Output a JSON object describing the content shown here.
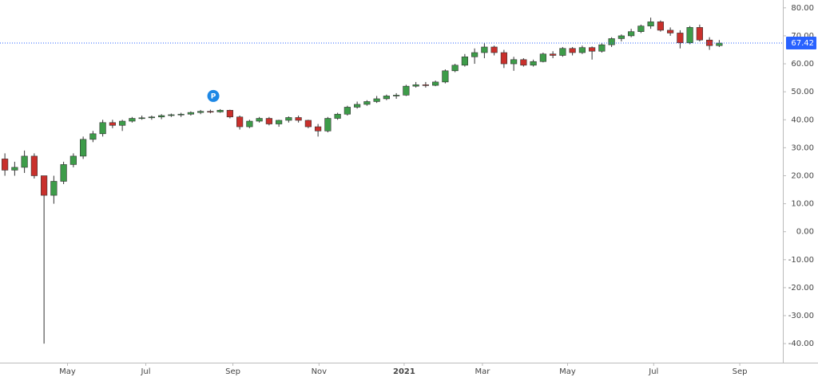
{
  "chart_data": {
    "type": "candlestick",
    "x": [
      0,
      1,
      2,
      3,
      4,
      5,
      6,
      7,
      8,
      9,
      10,
      11,
      12,
      13,
      14,
      15,
      16,
      17,
      18,
      19,
      20,
      21,
      22,
      23,
      24,
      25,
      26,
      27,
      28,
      29,
      30,
      31,
      32,
      33,
      34,
      35,
      36,
      37,
      38,
      39,
      40,
      41,
      42,
      43,
      44,
      45,
      46,
      47,
      48,
      49,
      50,
      51,
      52,
      53,
      54,
      55,
      56,
      57,
      58,
      59,
      60,
      61,
      62,
      63,
      64,
      65,
      66,
      67,
      68,
      69,
      70,
      71,
      72,
      73
    ],
    "open": [
      26,
      22,
      23,
      27,
      20,
      13,
      18,
      24,
      27,
      33,
      35,
      39,
      38,
      39.5,
      40.5,
      40.7,
      41,
      41.5,
      41.8,
      42,
      42.6,
      43,
      42.8,
      43.4,
      41,
      37.5,
      39.5,
      40.5,
      38.5,
      39.8,
      40.8,
      39.8,
      37.5,
      36,
      40.5,
      42,
      44.5,
      45.5,
      46.5,
      47.5,
      48.5,
      48.8,
      52,
      52.5,
      52.3,
      53.5,
      57.5,
      59.5,
      62.5,
      64,
      66,
      64,
      60,
      61.5,
      59.5,
      60.8,
      63.5,
      63,
      65.5,
      64,
      65.8,
      64.5,
      66.8,
      69,
      70,
      71.5,
      73.5,
      75,
      72,
      71,
      67.5,
      73,
      68.5,
      66.5
    ],
    "high": [
      28,
      25,
      29,
      28,
      20,
      20,
      25,
      28,
      34,
      36,
      40,
      40,
      40,
      41,
      41.5,
      41.5,
      42,
      42.2,
      42.5,
      43,
      43.5,
      43.6,
      43.8,
      43.6,
      41.5,
      40,
      41,
      41,
      40,
      41.2,
      41.5,
      40,
      38.5,
      41,
      42.5,
      45,
      46.5,
      47,
      48.5,
      49,
      49.5,
      52.5,
      53.5,
      53.5,
      54,
      58,
      60,
      63.5,
      65.5,
      67.5,
      66.5,
      65,
      62.5,
      62,
      61.5,
      64,
      64.5,
      66,
      66,
      66.5,
      66.2,
      67.5,
      69.5,
      70.5,
      72.5,
      74,
      76.5,
      75.5,
      73,
      72,
      73.5,
      74,
      69.5,
      68.5
    ],
    "low": [
      20,
      20,
      21,
      19,
      -40,
      10,
      17,
      23,
      26,
      32,
      34,
      37,
      36,
      39,
      40,
      40,
      40.2,
      41,
      41,
      41.5,
      42,
      42.3,
      42.5,
      40.5,
      36.5,
      37,
      39,
      38,
      37.5,
      39,
      39,
      37,
      34,
      35.5,
      40,
      41.5,
      44,
      45,
      46,
      47,
      47.5,
      48.5,
      51.5,
      51.5,
      52,
      53,
      57,
      59,
      60,
      62,
      63,
      58.5,
      57.5,
      59,
      59,
      60.5,
      62,
      62.5,
      63,
      63.5,
      61.5,
      64,
      66,
      68,
      69.5,
      71,
      72.5,
      71.5,
      70,
      65.5,
      67,
      68,
      65,
      66
    ],
    "close": [
      22,
      23,
      27,
      20,
      13,
      18,
      24,
      27,
      33,
      35,
      39,
      38,
      39.5,
      40.5,
      40.7,
      41,
      41.5,
      41.8,
      42,
      42.6,
      43,
      42.8,
      43.4,
      41,
      37.5,
      39.5,
      40.5,
      38.5,
      39.8,
      40.8,
      39.8,
      37.5,
      36,
      40.5,
      42,
      44.5,
      45.5,
      46.5,
      47.5,
      48.5,
      48.8,
      52,
      52.5,
      52.3,
      53.5,
      57.5,
      59.5,
      62.5,
      64,
      66,
      64,
      60,
      61.5,
      59.5,
      60.8,
      63.5,
      63,
      65.5,
      64,
      65.8,
      64.5,
      66.8,
      69,
      70,
      71.5,
      73.5,
      75,
      72,
      71,
      67.5,
      73,
      68.5,
      66.5,
      67.42
    ],
    "up_color": "#3d9c49",
    "down_color": "#c9302c",
    "last_price": {
      "value": 67.42,
      "label": "67.42",
      "color": "#2962ff"
    },
    "annotations": [
      {
        "label": "P",
        "x": 21.3,
        "y": 48.5,
        "color": "#1e88e5"
      }
    ],
    "xlim": [
      -0.5,
      79.5
    ],
    "xticks": [
      {
        "value": 6.4,
        "label": "May"
      },
      {
        "value": 14.4,
        "label": "Jul"
      },
      {
        "value": 23.3,
        "label": "Sep"
      },
      {
        "value": 32.1,
        "label": "Nov"
      },
      {
        "value": 40.8,
        "label": "2021"
      },
      {
        "value": 48.8,
        "label": "Mar"
      },
      {
        "value": 57.5,
        "label": "May"
      },
      {
        "value": 66.3,
        "label": "Jul"
      },
      {
        "value": 75.1,
        "label": "Sep"
      }
    ],
    "ylim": [
      -46.8,
      82.8
    ],
    "yticks": [
      {
        "value": 80,
        "label": "80.00"
      },
      {
        "value": 70,
        "label": "70.00"
      },
      {
        "value": 60,
        "label": "60.00"
      },
      {
        "value": 50,
        "label": "50.00"
      },
      {
        "value": 40,
        "label": "40.00"
      },
      {
        "value": 30,
        "label": "30.00"
      },
      {
        "value": 20,
        "label": "20.00"
      },
      {
        "value": 10,
        "label": "10.00"
      },
      {
        "value": 0,
        "label": "0.00"
      },
      {
        "value": -10,
        "label": "-10.00"
      },
      {
        "value": -20,
        "label": "-20.00"
      },
      {
        "value": -30,
        "label": "-30.00"
      },
      {
        "value": -40,
        "label": "-40.00"
      }
    ]
  }
}
